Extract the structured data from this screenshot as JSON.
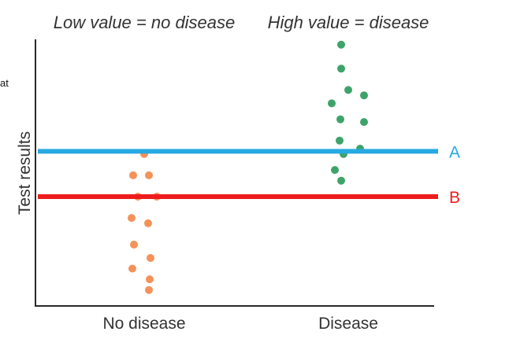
{
  "chart_data": {
    "type": "scatter",
    "title_left": "Low value = no disease",
    "title_right": "High value = disease",
    "ylabel": "Test results",
    "xlabel": "",
    "categories": [
      "No disease",
      "Disease"
    ],
    "ylim": [
      0,
      100
    ],
    "series": [
      {
        "name": "No disease",
        "color": "#f4925a",
        "values": [
          57,
          49,
          49,
          41,
          41,
          33,
          31,
          23,
          18,
          14,
          10,
          6
        ]
      },
      {
        "name": "Disease",
        "color": "#3ea36a",
        "values": [
          98,
          89,
          81,
          79,
          76,
          69,
          70,
          62,
          59,
          57,
          51,
          47
        ]
      }
    ],
    "thresholds": [
      {
        "label": "A",
        "value": 58,
        "color": "#27a9e1"
      },
      {
        "label": "B",
        "value": 41,
        "color": "#ee1c1c"
      }
    ]
  },
  "page": {
    "side_fragment": "at"
  }
}
